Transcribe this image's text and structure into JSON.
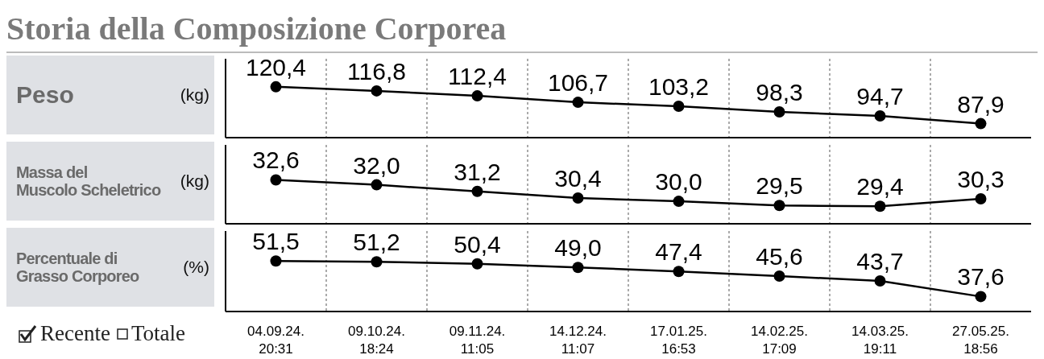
{
  "chart_data": [
    {
      "type": "line",
      "title": "Storia della Composizione Corporea",
      "ylabel": "Peso",
      "annotations": [
        "(kg)"
      ],
      "tick_labels": false,
      "grid": "x",
      "marker": "circle",
      "line_style": "solid",
      "color": "#000000",
      "values": [
        120.4,
        116.8,
        112.4,
        106.7,
        103.2,
        98.3,
        94.7,
        87.9
      ],
      "value_labels": [
        "120,4",
        "116,8",
        "112,4",
        "106,7",
        "103,2",
        "98,3",
        "94,7",
        "87,9"
      ]
    },
    {
      "type": "line",
      "ylabel": "Massa del\nMuscolo Scheletrico",
      "annotations": [
        "(kg)"
      ],
      "tick_labels": false,
      "grid": "x",
      "marker": "circle",
      "line_style": "solid",
      "color": "#000000",
      "values": [
        32.6,
        32.0,
        31.2,
        30.4,
        30.0,
        29.5,
        29.4,
        30.3
      ],
      "value_labels": [
        "32,6",
        "32,0",
        "31,2",
        "30,4",
        "30,0",
        "29,5",
        "29,4",
        "30,3"
      ]
    },
    {
      "type": "line",
      "ylabel": "Percentuale di\nGrasso Corporeo",
      "annotations": [
        "(%)",
        "Recente",
        "Totale"
      ],
      "categories": [
        "04.09.24.\n20:31",
        "09.10.24.\n18:24",
        "09.11.24.\n11:05",
        "14.12.24.\n11:07",
        "17.01.25.\n16:53",
        "14.02.25.\n17:09",
        "14.03.25.\n19:11",
        "27.05.25.\n18:56"
      ],
      "tick_labels": "x",
      "grid": "x",
      "marker": "circle",
      "line_style": "solid",
      "color": "#000000",
      "values": [
        51.5,
        51.2,
        50.4,
        49.0,
        47.4,
        45.6,
        43.7,
        37.6
      ],
      "value_labels": [
        "51,5",
        "51,2",
        "50,4",
        "49,0",
        "47,4",
        "45,6",
        "43,7",
        "37,6"
      ]
    }
  ]
}
